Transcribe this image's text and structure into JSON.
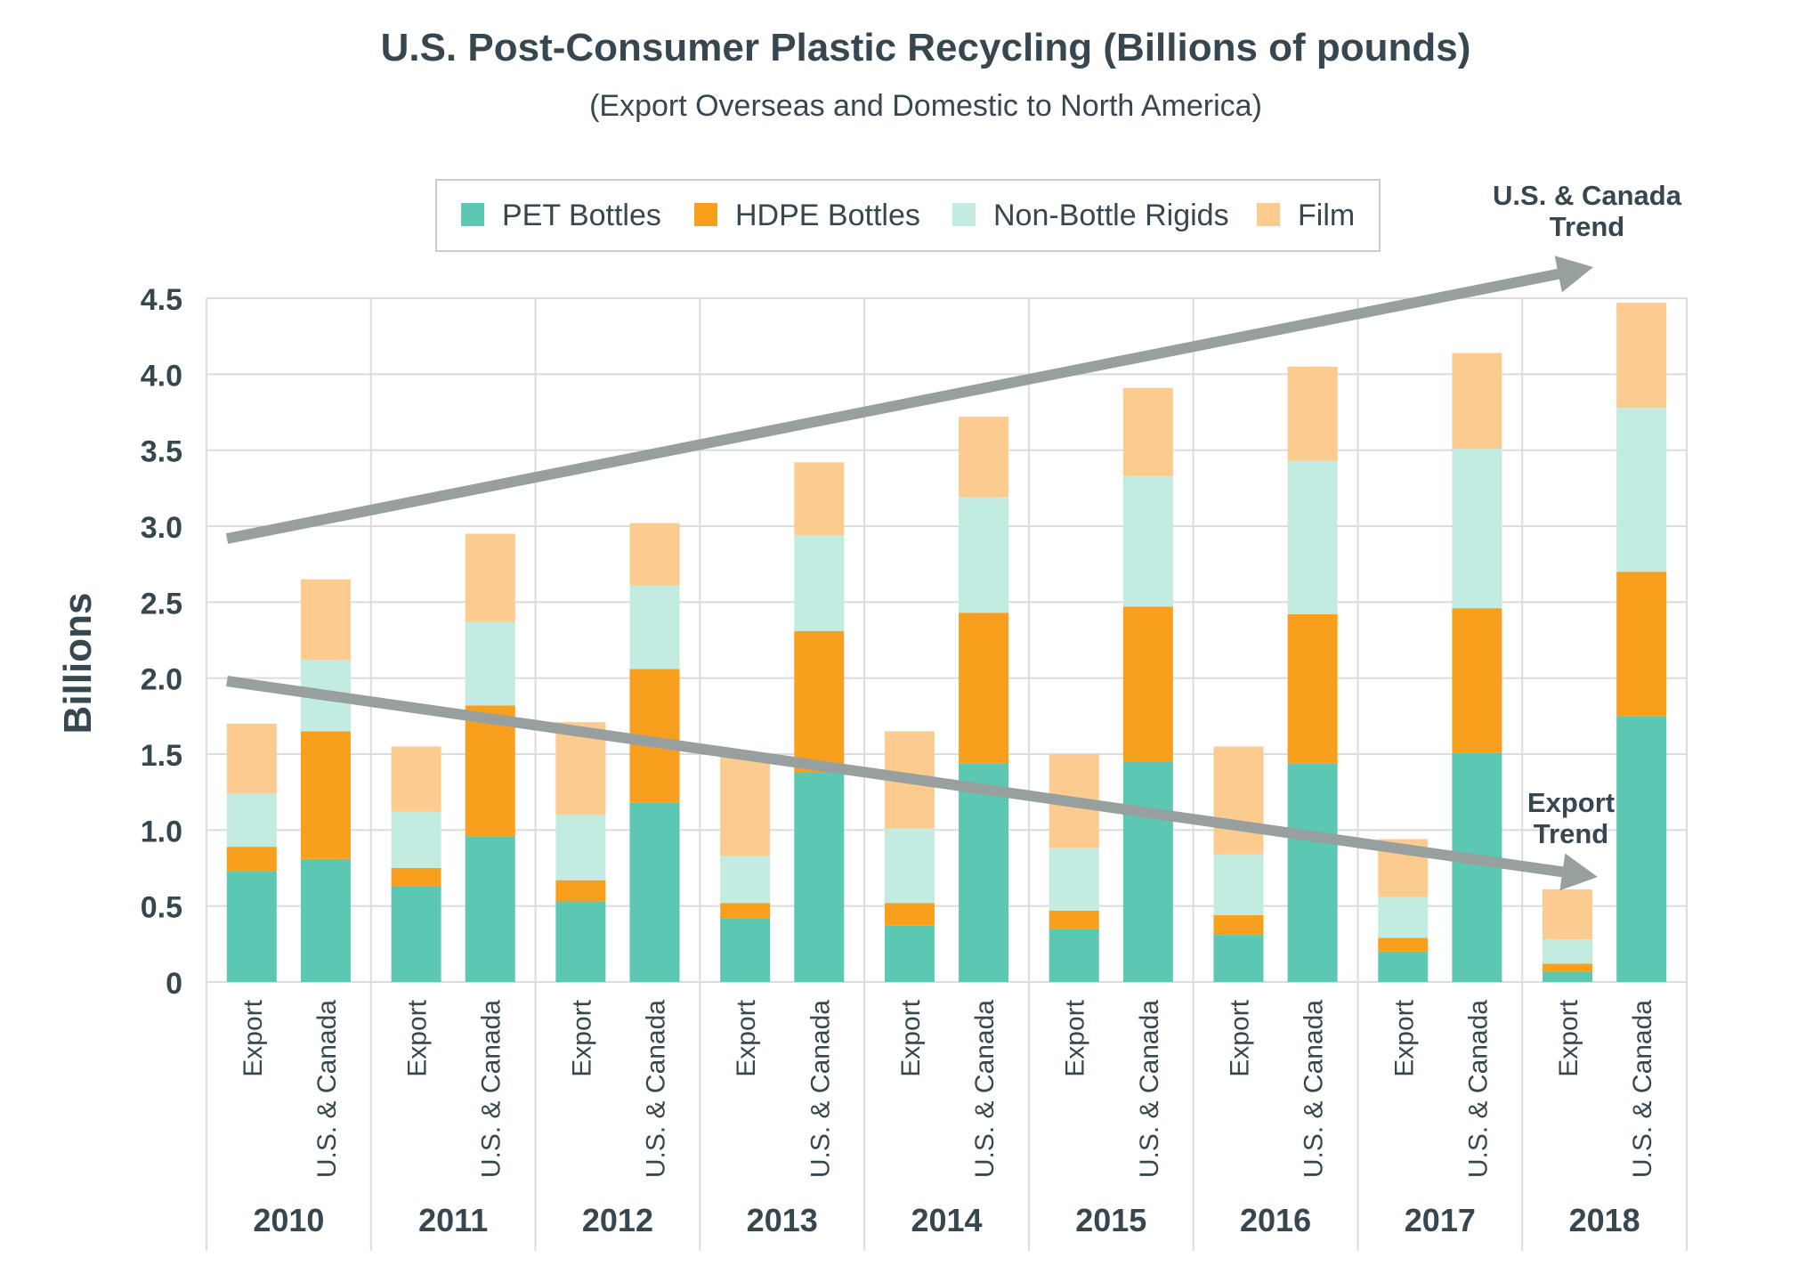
{
  "title": "U.S. Post-Consumer Plastic Recycling (Billions of pounds)",
  "subtitle": "(Export Overseas and Domestic to North America)",
  "chart_data": {
    "type": "bar",
    "stacked": true,
    "ylabel": "Billions",
    "ylim": [
      0,
      4.5
    ],
    "yticks": [
      "0",
      "0.5",
      "1.0",
      "1.5",
      "2.0",
      "2.5",
      "3.0",
      "3.5",
      "4.0",
      "4.5"
    ],
    "years": [
      "2010",
      "2011",
      "2012",
      "2013",
      "2014",
      "2015",
      "2016",
      "2017",
      "2018"
    ],
    "bar_labels": [
      "Export",
      "U.S. & Canada"
    ],
    "grid": true,
    "legend_position": "top",
    "series": [
      {
        "name": "PET Bottles",
        "color": "#5cc8b4",
        "values": [
          [
            0.73,
            0.81
          ],
          [
            0.63,
            0.96
          ],
          [
            0.53,
            1.18
          ],
          [
            0.42,
            1.38
          ],
          [
            0.37,
            1.44
          ],
          [
            0.35,
            1.45
          ],
          [
            0.31,
            1.44
          ],
          [
            0.2,
            1.51
          ],
          [
            0.07,
            1.75
          ]
        ]
      },
      {
        "name": "HDPE Bottles",
        "color": "#f99f1e",
        "values": [
          [
            0.16,
            0.84
          ],
          [
            0.12,
            0.86
          ],
          [
            0.14,
            0.88
          ],
          [
            0.1,
            0.93
          ],
          [
            0.15,
            0.99
          ],
          [
            0.12,
            1.02
          ],
          [
            0.13,
            0.98
          ],
          [
            0.09,
            0.95
          ],
          [
            0.05,
            0.95
          ]
        ]
      },
      {
        "name": "Non-Bottle Rigids",
        "color": "#c2ebe1",
        "values": [
          [
            0.35,
            0.47
          ],
          [
            0.37,
            0.55
          ],
          [
            0.43,
            0.55
          ],
          [
            0.31,
            0.63
          ],
          [
            0.49,
            0.76
          ],
          [
            0.41,
            0.86
          ],
          [
            0.4,
            1.01
          ],
          [
            0.27,
            1.05
          ],
          [
            0.16,
            1.08
          ]
        ]
      },
      {
        "name": "Film",
        "color": "#fccb8f",
        "values": [
          [
            0.46,
            0.53
          ],
          [
            0.43,
            0.58
          ],
          [
            0.61,
            0.41
          ],
          [
            0.67,
            0.48
          ],
          [
            0.64,
            0.53
          ],
          [
            0.62,
            0.58
          ],
          [
            0.71,
            0.62
          ],
          [
            0.38,
            0.63
          ],
          [
            0.33,
            0.69
          ]
        ]
      }
    ],
    "annotations": [
      {
        "text": [
          "U.S. & Canada",
          "Trend"
        ]
      },
      {
        "text": [
          "Export",
          "Trend"
        ]
      }
    ]
  }
}
